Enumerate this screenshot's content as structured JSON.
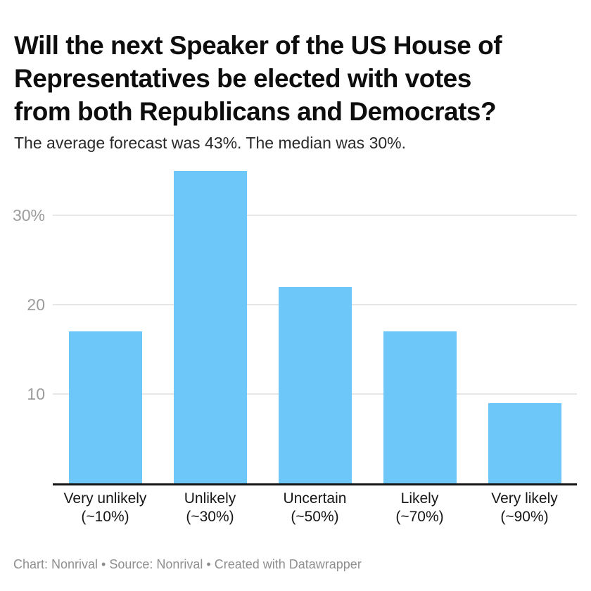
{
  "header": {
    "title": "Will the next Speaker of the US House of Representatives be elected with votes from both Republicans and Democrats?",
    "title_lines": [
      "Will the next Speaker of the US House of",
      "Representatives be elected with votes",
      "from both Republicans and Democrats?"
    ],
    "subtitle": "The average forecast was 43%. The median was 30%."
  },
  "chart_data": {
    "type": "bar",
    "title": "Will the next Speaker of the US House of Representatives be elected with votes from both Republicans and Democrats?",
    "subtitle": "The average forecast was 43%. The median was 30%.",
    "categories": [
      "Very unlikely",
      "Unlikely",
      "Uncertain",
      "Likely",
      "Very likely"
    ],
    "category_sublabels": [
      "(~10%)",
      "(~30%)",
      "(~50%)",
      "(~70%)",
      "(~90%)"
    ],
    "values": [
      17,
      35,
      22,
      17,
      9
    ],
    "unit": "%",
    "xlabel": "",
    "ylabel": "",
    "ylim": [
      0,
      36
    ],
    "yticks": [
      {
        "value": 10,
        "label": "10"
      },
      {
        "value": 20,
        "label": "20"
      },
      {
        "value": 30,
        "label": "30%"
      }
    ],
    "grid": true,
    "legend": "none"
  },
  "colors": {
    "bar": "#6dc7f8",
    "gridline": "#e6e6e6",
    "baseline": "#141414",
    "y_tick_text": "#9c9c9c",
    "x_tick_text": "#161616",
    "title_text": "#0d0d0d",
    "subtitle_text": "#2a2a2a",
    "footer_text": "#8f8f8f"
  },
  "footer": {
    "credit": "Chart: Nonrival • Source: Nonrival • Created with Datawrapper"
  }
}
